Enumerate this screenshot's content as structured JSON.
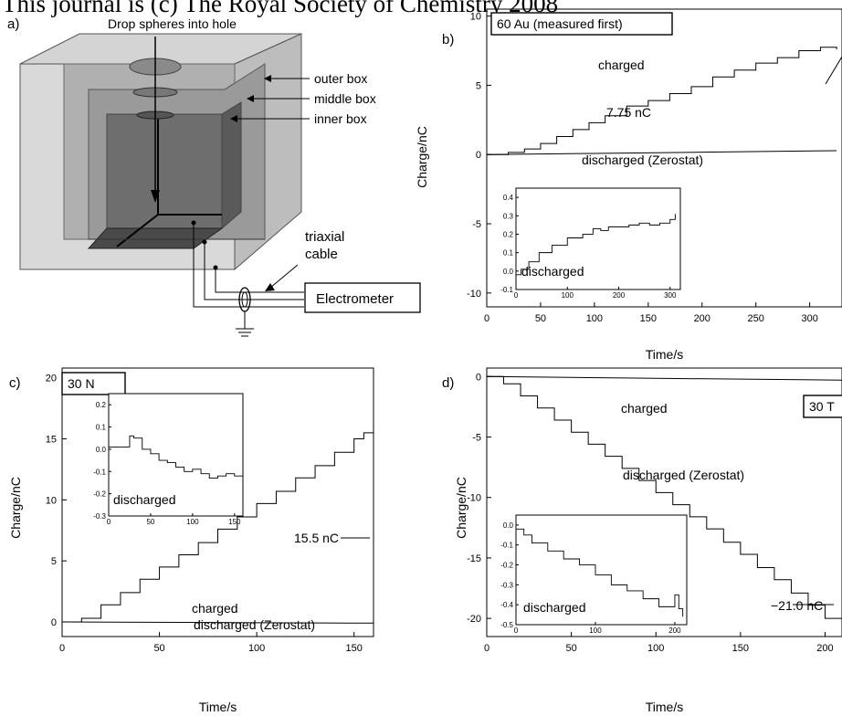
{
  "header": "This journal is (c) The Royal Society of Chemistry 2008",
  "colors": {
    "ink": "#000000",
    "box_light": "#d4d4d4",
    "box_mid": "#a9a9a9",
    "box_dark": "#6e6e6e",
    "inner_face": "#4a4a4a"
  },
  "panel_a": {
    "letter": "a)",
    "drop_label": "Drop spheres into hole",
    "outer_box": "outer box",
    "middle_box": "middle box",
    "inner_box": "inner box",
    "cable_line1": "triaxial",
    "cable_line2": "cable",
    "electrometer": "Electrometer"
  },
  "chart_data": [
    {
      "panel": "b)",
      "type": "line",
      "title": "60 Au (measured first)",
      "xlabel": "Time/s",
      "ylabel": "Charge/nC",
      "xlim": [
        0,
        330
      ],
      "ylim": [
        -11,
        10.5
      ],
      "xticks": [
        0,
        50,
        100,
        150,
        200,
        250,
        300
      ],
      "yticks": [
        -10,
        -5,
        0,
        5,
        10
      ],
      "series": [
        {
          "name": "charged",
          "x": [
            0,
            20,
            35,
            50,
            65,
            80,
            95,
            110,
            130,
            150,
            170,
            190,
            210,
            230,
            250,
            270,
            290,
            310,
            325
          ],
          "y": [
            0,
            0.15,
            0.4,
            0.8,
            1.3,
            1.8,
            2.3,
            2.8,
            3.5,
            3.9,
            4.4,
            4.9,
            5.6,
            6.1,
            6.6,
            7.0,
            7.5,
            7.75,
            7.6
          ]
        },
        {
          "name": "discharged (Zerostat)",
          "x": [
            0,
            100,
            200,
            325
          ],
          "y": [
            0,
            0.08,
            0.17,
            0.28
          ]
        }
      ],
      "annotations": [
        {
          "text": "7.75 nC",
          "x": 316,
          "y": 7.75
        }
      ],
      "inset": {
        "label": "discharged",
        "xlim": [
          0,
          320
        ],
        "ylim": [
          -0.1,
          0.45
        ],
        "xticks": [
          0,
          100,
          200,
          300
        ],
        "yticks": [
          -0.1,
          0.0,
          0.1,
          0.2,
          0.3,
          0.4
        ],
        "x": [
          0,
          10,
          25,
          45,
          70,
          100,
          130,
          150,
          165,
          180,
          200,
          220,
          240,
          260,
          280,
          300,
          310
        ],
        "y": [
          -0.02,
          0.01,
          0.05,
          0.1,
          0.14,
          0.18,
          0.2,
          0.23,
          0.22,
          0.24,
          0.24,
          0.25,
          0.26,
          0.25,
          0.26,
          0.28,
          0.31
        ]
      }
    },
    {
      "panel": "c)",
      "type": "line",
      "title": "30 N",
      "xlabel": "Time/s",
      "ylabel": "Charge/nC",
      "xlim": [
        0,
        160
      ],
      "ylim": [
        -1.2,
        20.8
      ],
      "xticks": [
        0,
        50,
        100,
        150
      ],
      "yticks": [
        0,
        5,
        10,
        15,
        20
      ],
      "series": [
        {
          "name": "charged",
          "x": [
            0,
            10,
            20,
            30,
            40,
            50,
            60,
            70,
            80,
            90,
            100,
            110,
            120,
            130,
            140,
            150,
            155,
            160
          ],
          "y": [
            0,
            0.3,
            1.4,
            2.4,
            3.5,
            4.5,
            5.5,
            6.5,
            7.6,
            8.6,
            9.7,
            10.7,
            11.8,
            12.8,
            13.9,
            15.0,
            15.5,
            15.5
          ]
        },
        {
          "name": "discharged (Zerostat)",
          "x": [
            0,
            80,
            160
          ],
          "y": [
            0,
            -0.05,
            -0.1
          ]
        }
      ],
      "annotations": [
        {
          "text": "15.5 nC",
          "x": 155,
          "y": 15.5
        }
      ],
      "inset": {
        "label": "discharged",
        "xlim": [
          0,
          160
        ],
        "ylim": [
          -0.3,
          0.25
        ],
        "xticks": [
          0,
          50,
          100,
          150
        ],
        "yticks": [
          -0.3,
          -0.2,
          -0.1,
          0.0,
          0.1,
          0.2
        ],
        "x": [
          0,
          15,
          25,
          30,
          40,
          50,
          60,
          70,
          80,
          90,
          100,
          110,
          120,
          130,
          140,
          150,
          160
        ],
        "y": [
          0.01,
          0.01,
          0.06,
          0.05,
          0.0,
          -0.02,
          -0.05,
          -0.06,
          -0.08,
          -0.1,
          -0.09,
          -0.11,
          -0.13,
          -0.12,
          -0.11,
          -0.12,
          -0.13
        ]
      }
    },
    {
      "panel": "d)",
      "type": "line",
      "title": "30 T",
      "xlabel": "Time/s",
      "ylabel": "Charge/nC",
      "xlim": [
        0,
        210
      ],
      "ylim": [
        -21.5,
        0.7
      ],
      "xticks": [
        0,
        50,
        100,
        150,
        200
      ],
      "yticks": [
        0,
        -5,
        -10,
        -15,
        -20
      ],
      "series": [
        {
          "name": "charged",
          "x": [
            0,
            10,
            20,
            30,
            40,
            50,
            60,
            70,
            80,
            90,
            100,
            110,
            120,
            130,
            140,
            150,
            160,
            170,
            180,
            190,
            200,
            210
          ],
          "y": [
            0,
            -0.6,
            -1.6,
            -2.6,
            -3.6,
            -4.6,
            -5.6,
            -6.6,
            -7.6,
            -8.6,
            -9.6,
            -10.6,
            -11.6,
            -12.6,
            -13.7,
            -14.7,
            -15.8,
            -16.8,
            -17.9,
            -18.9,
            -20.0,
            -21.0
          ]
        },
        {
          "name": "discharged (Zerostat)",
          "x": [
            0,
            100,
            210
          ],
          "y": [
            0,
            -0.15,
            -0.3
          ]
        }
      ],
      "annotations": [
        {
          "text": "−21.0 nC",
          "x": 208,
          "y": -21.0
        }
      ],
      "inset": {
        "label": "discharged",
        "xlim": [
          0,
          215
        ],
        "ylim": [
          -0.5,
          0.05
        ],
        "xticks": [
          0,
          100,
          200
        ],
        "yticks": [
          0.0,
          -0.1,
          -0.2,
          -0.3,
          -0.4,
          -0.5
        ],
        "x": [
          0,
          10,
          20,
          40,
          60,
          80,
          100,
          120,
          140,
          160,
          180,
          190,
          200,
          205,
          210
        ],
        "y": [
          -0.02,
          -0.05,
          -0.09,
          -0.13,
          -0.17,
          -0.2,
          -0.25,
          -0.3,
          -0.33,
          -0.37,
          -0.41,
          -0.41,
          -0.35,
          -0.42,
          -0.46
        ]
      }
    }
  ]
}
